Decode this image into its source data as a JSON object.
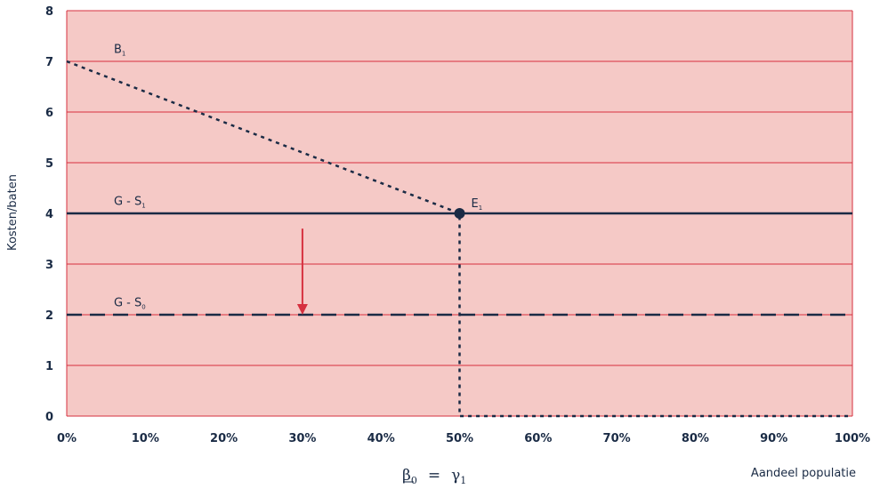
{
  "chart_data": {
    "type": "line",
    "xlabel": "Aandeel populatie",
    "ylabel": "Kosten/baten",
    "xlim": [
      0,
      100
    ],
    "ylim": [
      0,
      8
    ],
    "x_ticks": [
      "0%",
      "10%",
      "20%",
      "30%",
      "40%",
      "50%",
      "60%",
      "70%",
      "80%",
      "90%",
      "100%"
    ],
    "y_ticks": [
      "0",
      "1",
      "2",
      "3",
      "4",
      "5",
      "6",
      "7",
      "8"
    ],
    "grid": "horizontal",
    "background_color": "#f5c9c6",
    "grid_color": "#d6303f",
    "line_color": "#1a2b45",
    "arrow_color": "#d6303f",
    "series": [
      {
        "name": "B",
        "subscript": "1",
        "style": "dotted",
        "points": [
          [
            0,
            7
          ],
          [
            50,
            4
          ],
          [
            50,
            0
          ],
          [
            100,
            0
          ]
        ]
      },
      {
        "name": "G - S",
        "subscript": "1",
        "style": "solid",
        "points": [
          [
            0,
            4
          ],
          [
            100,
            4
          ]
        ]
      },
      {
        "name": "G - S",
        "subscript": "0",
        "style": "dashed",
        "points": [
          [
            0,
            2
          ],
          [
            100,
            2
          ]
        ]
      }
    ],
    "series_labels": [
      {
        "text": "B",
        "subscript": "1",
        "x": 6,
        "y": 7.15
      },
      {
        "text": "G - S",
        "subscript": "1",
        "x": 6,
        "y": 4.15
      },
      {
        "text": "G - S",
        "subscript": "0",
        "x": 6,
        "y": 2.15
      }
    ],
    "points": [
      {
        "name": "E",
        "subscript": "1",
        "x": 50,
        "y": 4
      }
    ],
    "arrow": {
      "x": 30,
      "from_y": 3.7,
      "to_y": 2
    },
    "formula": {
      "beta": "β",
      "beta_sub": "0",
      "equals": "=",
      "gamma": "γ",
      "gamma_sub": "1"
    }
  }
}
